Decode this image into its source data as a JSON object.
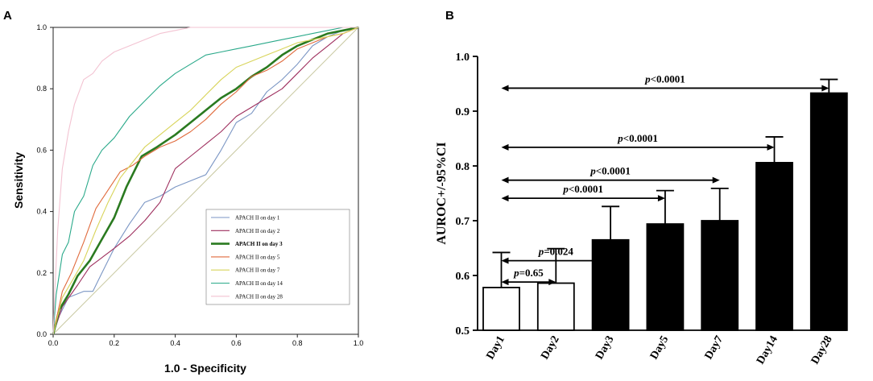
{
  "panels": {
    "a": "A",
    "b": "B"
  },
  "chart_data": [
    {
      "type": "line",
      "panel": "A",
      "xlabel": "1.0 - Specificity",
      "ylabel": "Sensitivity",
      "xlim": [
        0,
        1
      ],
      "ylim": [
        0,
        1
      ],
      "xticks": [
        "0.0",
        "0.2",
        "0.4",
        "0.6",
        "0.8",
        "1.0"
      ],
      "yticks": [
        "0.0",
        "0.2",
        "0.4",
        "0.6",
        "0.8",
        "1.0"
      ],
      "legend_position": "bottom-right",
      "reference_line": {
        "x": [
          0,
          1
        ],
        "y": [
          0,
          1
        ],
        "color": "#c8c8a0"
      },
      "series": [
        {
          "name": "APACH II on day 1",
          "color": "#7b96c4",
          "bold": false,
          "x": [
            0,
            0.02,
            0.05,
            0.1,
            0.13,
            0.16,
            0.2,
            0.25,
            0.3,
            0.35,
            0.4,
            0.45,
            0.5,
            0.55,
            0.6,
            0.65,
            0.7,
            0.75,
            0.8,
            0.85,
            0.9,
            0.95,
            1
          ],
          "y": [
            0,
            0.06,
            0.12,
            0.14,
            0.14,
            0.2,
            0.28,
            0.36,
            0.43,
            0.45,
            0.48,
            0.5,
            0.52,
            0.6,
            0.69,
            0.72,
            0.79,
            0.83,
            0.88,
            0.94,
            0.97,
            0.99,
            1
          ]
        },
        {
          "name": "APACH II on day 2",
          "color": "#9e2f5e",
          "bold": false,
          "x": [
            0,
            0.03,
            0.08,
            0.12,
            0.16,
            0.2,
            0.25,
            0.3,
            0.35,
            0.4,
            0.45,
            0.5,
            0.55,
            0.6,
            0.65,
            0.7,
            0.75,
            0.8,
            0.85,
            0.9,
            0.95,
            1
          ],
          "y": [
            0,
            0.09,
            0.16,
            0.22,
            0.25,
            0.28,
            0.32,
            0.37,
            0.43,
            0.54,
            0.58,
            0.62,
            0.66,
            0.71,
            0.74,
            0.77,
            0.8,
            0.85,
            0.9,
            0.94,
            0.98,
            1
          ]
        },
        {
          "name": "APACH II on day 3",
          "color": "#2a7a20",
          "bold": true,
          "x": [
            0,
            0.02,
            0.05,
            0.08,
            0.12,
            0.16,
            0.2,
            0.24,
            0.29,
            0.34,
            0.4,
            0.45,
            0.5,
            0.55,
            0.6,
            0.65,
            0.7,
            0.75,
            0.8,
            0.85,
            0.9,
            0.95,
            1
          ],
          "y": [
            0,
            0.08,
            0.13,
            0.19,
            0.24,
            0.31,
            0.38,
            0.48,
            0.58,
            0.61,
            0.65,
            0.69,
            0.73,
            0.77,
            0.8,
            0.84,
            0.87,
            0.91,
            0.94,
            0.96,
            0.98,
            0.99,
            1
          ]
        },
        {
          "name": "APACH II on day 5",
          "color": "#e06a3c",
          "bold": false,
          "x": [
            0,
            0.03,
            0.06,
            0.1,
            0.14,
            0.18,
            0.22,
            0.26,
            0.3,
            0.35,
            0.4,
            0.45,
            0.5,
            0.55,
            0.6,
            0.65,
            0.7,
            0.75,
            0.8,
            0.85,
            0.9,
            0.95,
            1
          ],
          "y": [
            0,
            0.14,
            0.2,
            0.3,
            0.41,
            0.47,
            0.53,
            0.55,
            0.58,
            0.61,
            0.63,
            0.66,
            0.7,
            0.75,
            0.79,
            0.84,
            0.86,
            0.89,
            0.93,
            0.95,
            0.97,
            0.98,
            1
          ]
        },
        {
          "name": "APACH II on day 7",
          "color": "#d8d45a",
          "bold": false,
          "x": [
            0,
            0.03,
            0.06,
            0.1,
            0.14,
            0.18,
            0.22,
            0.26,
            0.3,
            0.35,
            0.4,
            0.45,
            0.5,
            0.55,
            0.6,
            0.65,
            0.7,
            0.75,
            0.8,
            0.85,
            0.9,
            0.95,
            1
          ],
          "y": [
            0,
            0.12,
            0.17,
            0.24,
            0.34,
            0.43,
            0.51,
            0.56,
            0.61,
            0.65,
            0.69,
            0.73,
            0.78,
            0.83,
            0.87,
            0.89,
            0.91,
            0.93,
            0.95,
            0.96,
            0.97,
            0.98,
            1
          ]
        },
        {
          "name": "APACH II on day 14",
          "color": "#2aa98a",
          "bold": false,
          "x": [
            0,
            0.01,
            0.03,
            0.05,
            0.07,
            0.1,
            0.13,
            0.16,
            0.2,
            0.25,
            0.3,
            0.35,
            0.4,
            0.45,
            0.5,
            0.55,
            0.6,
            0.65,
            0.7,
            0.75,
            0.8,
            0.85,
            0.9,
            0.95,
            1
          ],
          "y": [
            0,
            0.13,
            0.26,
            0.3,
            0.4,
            0.45,
            0.55,
            0.6,
            0.64,
            0.71,
            0.76,
            0.81,
            0.85,
            0.88,
            0.91,
            0.92,
            0.93,
            0.94,
            0.95,
            0.96,
            0.97,
            0.98,
            0.99,
            1,
            1
          ]
        },
        {
          "name": "APACH II on day 28",
          "color": "#f3c3d2",
          "bold": false,
          "x": [
            0,
            0.005,
            0.015,
            0.03,
            0.05,
            0.07,
            0.1,
            0.13,
            0.16,
            0.2,
            0.25,
            0.3,
            0.35,
            0.4,
            0.45,
            0.5,
            0.6,
            0.7,
            0.8,
            0.9,
            1
          ],
          "y": [
            0,
            0.13,
            0.34,
            0.54,
            0.66,
            0.75,
            0.83,
            0.85,
            0.89,
            0.92,
            0.94,
            0.96,
            0.98,
            0.99,
            1,
            1,
            1,
            1,
            1,
            1,
            1
          ]
        }
      ]
    },
    {
      "type": "bar",
      "panel": "B",
      "ylabel": "AUROC+/-95%CI",
      "ylim": [
        0.5,
        1.0
      ],
      "yticks": [
        "0.5",
        "0.6",
        "0.7",
        "0.8",
        "0.9",
        "1.0"
      ],
      "categories": [
        "Day1",
        "Day2",
        "Day3",
        "Day5",
        "Day7",
        "Day14",
        "Day28"
      ],
      "values": [
        0.578,
        0.586,
        0.665,
        0.694,
        0.7,
        0.806,
        0.933
      ],
      "ci_upper": [
        0.642,
        0.649,
        0.726,
        0.755,
        0.759,
        0.853,
        0.958
      ],
      "fill": [
        "white",
        "white",
        "black",
        "black",
        "black",
        "black",
        "black"
      ],
      "comparisons": [
        {
          "from": 0,
          "to": 1,
          "y": 0.588,
          "label": "p=0.65"
        },
        {
          "from": 0,
          "to": 2,
          "y": 0.627,
          "label": "p=0.024"
        },
        {
          "from": 0,
          "to": 3,
          "y": 0.741,
          "label": "p<0.0001"
        },
        {
          "from": 0,
          "to": 4,
          "y": 0.774,
          "label": "p<0.0001"
        },
        {
          "from": 0,
          "to": 5,
          "y": 0.834,
          "label": "p<0.0001"
        },
        {
          "from": 0,
          "to": 6,
          "y": 0.942,
          "label": "p<0.0001"
        }
      ]
    }
  ]
}
